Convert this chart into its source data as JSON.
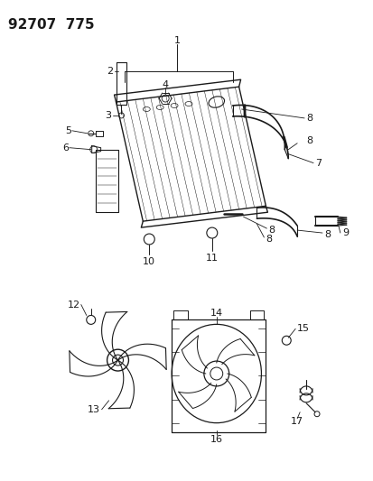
{
  "title": "92707  775",
  "bg_color": "#ffffff",
  "line_color": "#1a1a1a",
  "title_fontsize": 11,
  "label_fontsize": 7.5,
  "fig_width": 4.14,
  "fig_height": 5.33,
  "dpi": 100
}
